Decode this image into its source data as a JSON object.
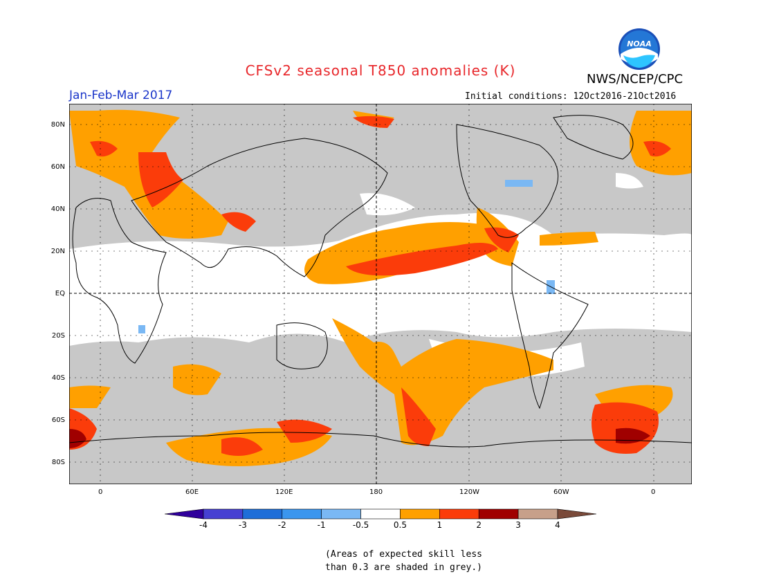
{
  "title": "CFSv2 seasonal T850 anomalies (K)",
  "organization": "NWS/NCEP/CPC",
  "logo_text": "NOAA",
  "season": "Jan-Feb-Mar 2017",
  "initial_conditions": "Initial conditions: 12Oct2016-21Oct2016",
  "lat_labels": [
    "80N",
    "60N",
    "40N",
    "20N",
    "EQ",
    "20S",
    "40S",
    "60S",
    "80S"
  ],
  "lon_labels": [
    "0",
    "60E",
    "120E",
    "180",
    "120W",
    "60W",
    "0"
  ],
  "colorbar": {
    "colors": [
      "#30009c",
      "#4640d2",
      "#1e6ed8",
      "#3b96ee",
      "#7ab8f4",
      "#ffffff",
      "#ffa000",
      "#fb3c0a",
      "#a00000",
      "#c7a08a",
      "#7a4a3a"
    ],
    "tick_labels": [
      "-4",
      "-3",
      "-2",
      "-1",
      "-0.5",
      "0.5",
      "1",
      "2",
      "3",
      "4"
    ]
  },
  "note": [
    "(Areas of expected skill less",
    "than 0.3 are shaded in grey.)"
  ],
  "palette": {
    "grey": "#c8c8c8",
    "white": "#ffffff",
    "orange": "#ffa000",
    "red": "#fb3c0a",
    "darkred": "#a00000",
    "blue": "#7ab8f4"
  }
}
